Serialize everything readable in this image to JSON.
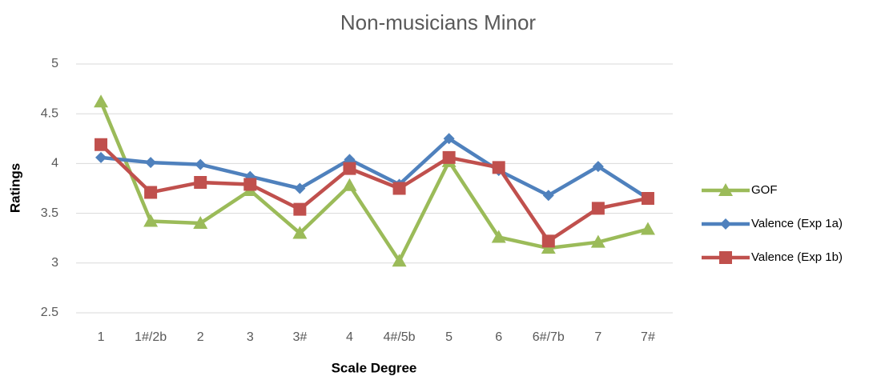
{
  "chart_data": {
    "type": "line",
    "title": "Non-musicians Minor",
    "x_label": "Scale Degree",
    "y_label": "Ratings",
    "categories": [
      "1",
      "1#/2b",
      "2",
      "3",
      "3#",
      "4",
      "4#/5b",
      "5",
      "6",
      "6#/7b",
      "7",
      "7#"
    ],
    "series": [
      {
        "name": "GOF",
        "color": "#9bbb59",
        "marker": "triangle",
        "values": [
          4.62,
          3.42,
          3.4,
          3.73,
          3.3,
          3.78,
          3.02,
          4.02,
          3.26,
          3.15,
          3.21,
          3.34
        ]
      },
      {
        "name": "Valence (Exp 1a)",
        "color": "#4f81bd",
        "marker": "diamond",
        "values": [
          4.06,
          4.01,
          3.99,
          3.87,
          3.75,
          4.04,
          3.79,
          4.25,
          3.93,
          3.68,
          3.97,
          3.65
        ]
      },
      {
        "name": "Valence (Exp 1b)",
        "color": "#c0504d",
        "marker": "square",
        "values": [
          4.19,
          3.71,
          3.81,
          3.79,
          3.54,
          3.95,
          3.75,
          4.06,
          3.96,
          3.22,
          3.55,
          3.65
        ]
      }
    ],
    "ylim": [
      2.5,
      5
    ],
    "yticks": [
      2.5,
      3,
      3.5,
      4,
      4.5,
      5
    ],
    "grid": true,
    "legend": "right"
  }
}
